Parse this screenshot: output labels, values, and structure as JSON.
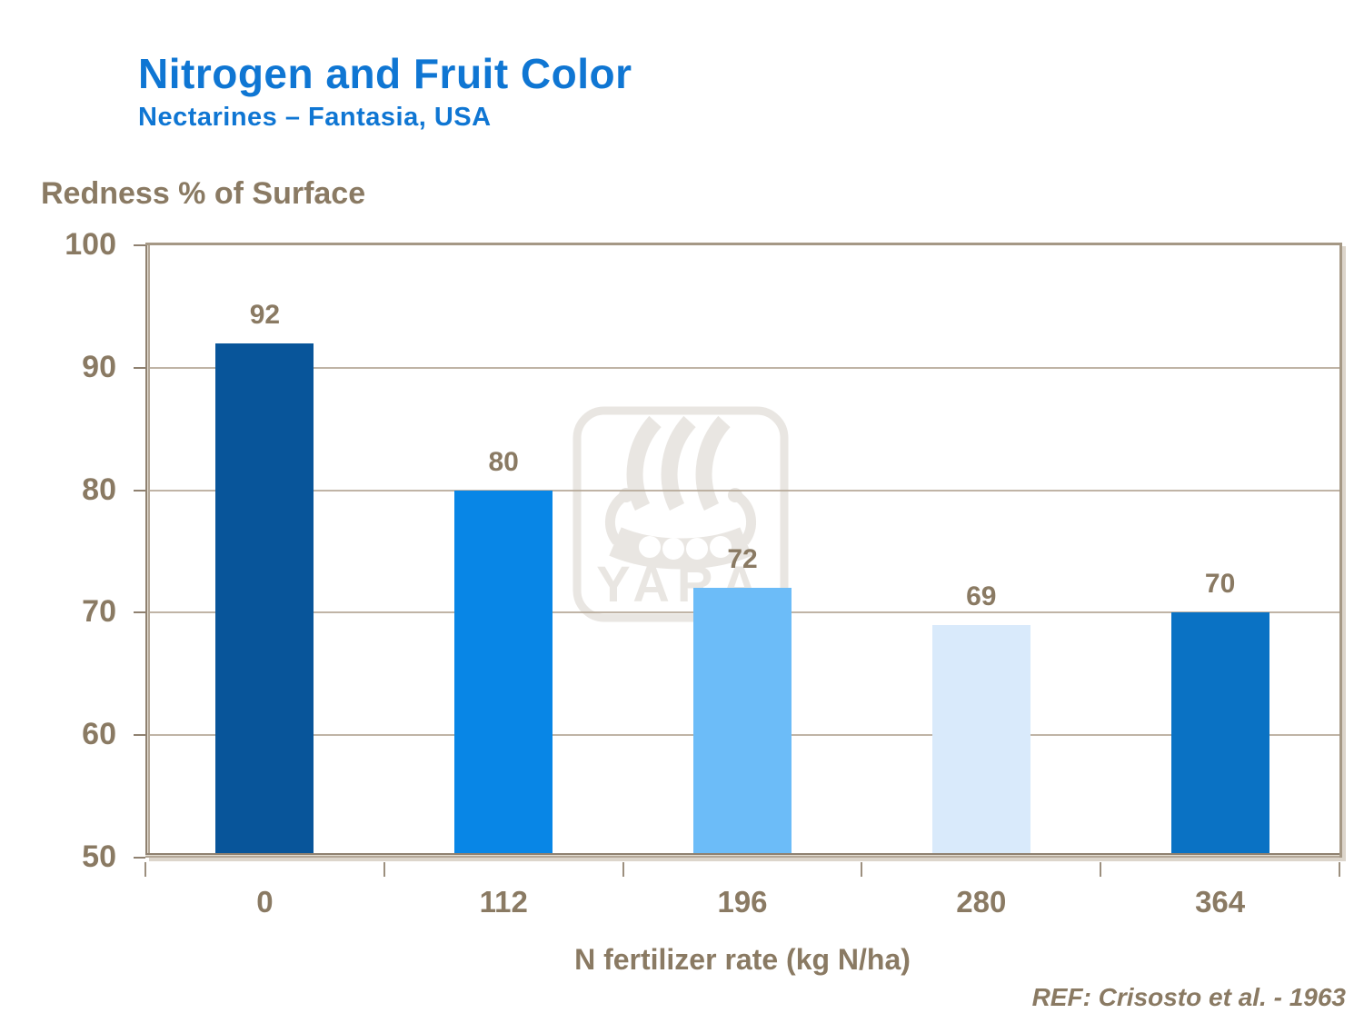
{
  "header": {
    "title": "Nitrogen and Fruit Color",
    "subtitle": "Nectarines – Fantasia, USA"
  },
  "footer": {
    "reference": "REF: Crisosto et al. - 1963"
  },
  "watermark": {
    "brand": "YARA"
  },
  "chart_data": {
    "type": "bar",
    "title": "Nitrogen and Fruit Color",
    "subtitle": "Nectarines – Fantasia, USA",
    "ylabel": "Redness % of Surface",
    "xlabel": "N fertilizer rate (kg N/ha)",
    "categories": [
      "0",
      "112",
      "196",
      "280",
      "364"
    ],
    "values": [
      92,
      80,
      72,
      69,
      70
    ],
    "bar_colors": [
      "#08559A",
      "#0886E6",
      "#6CBCF8",
      "#D9EAFB",
      "#0A72C4"
    ],
    "ylim": [
      50,
      100
    ],
    "yticks": [
      100,
      90,
      80,
      70,
      60,
      50
    ],
    "gridlines": [
      90,
      80,
      70,
      60
    ],
    "grid": true,
    "legend_position": "none"
  },
  "colors": {
    "title_blue": "#0F76D3",
    "text_brown": "#8A7A63",
    "axis_tan": "#A59885",
    "gridline_tan": "#B5A796",
    "watermark_gray": "#E9E6E2",
    "background": "#FFFFFF"
  }
}
